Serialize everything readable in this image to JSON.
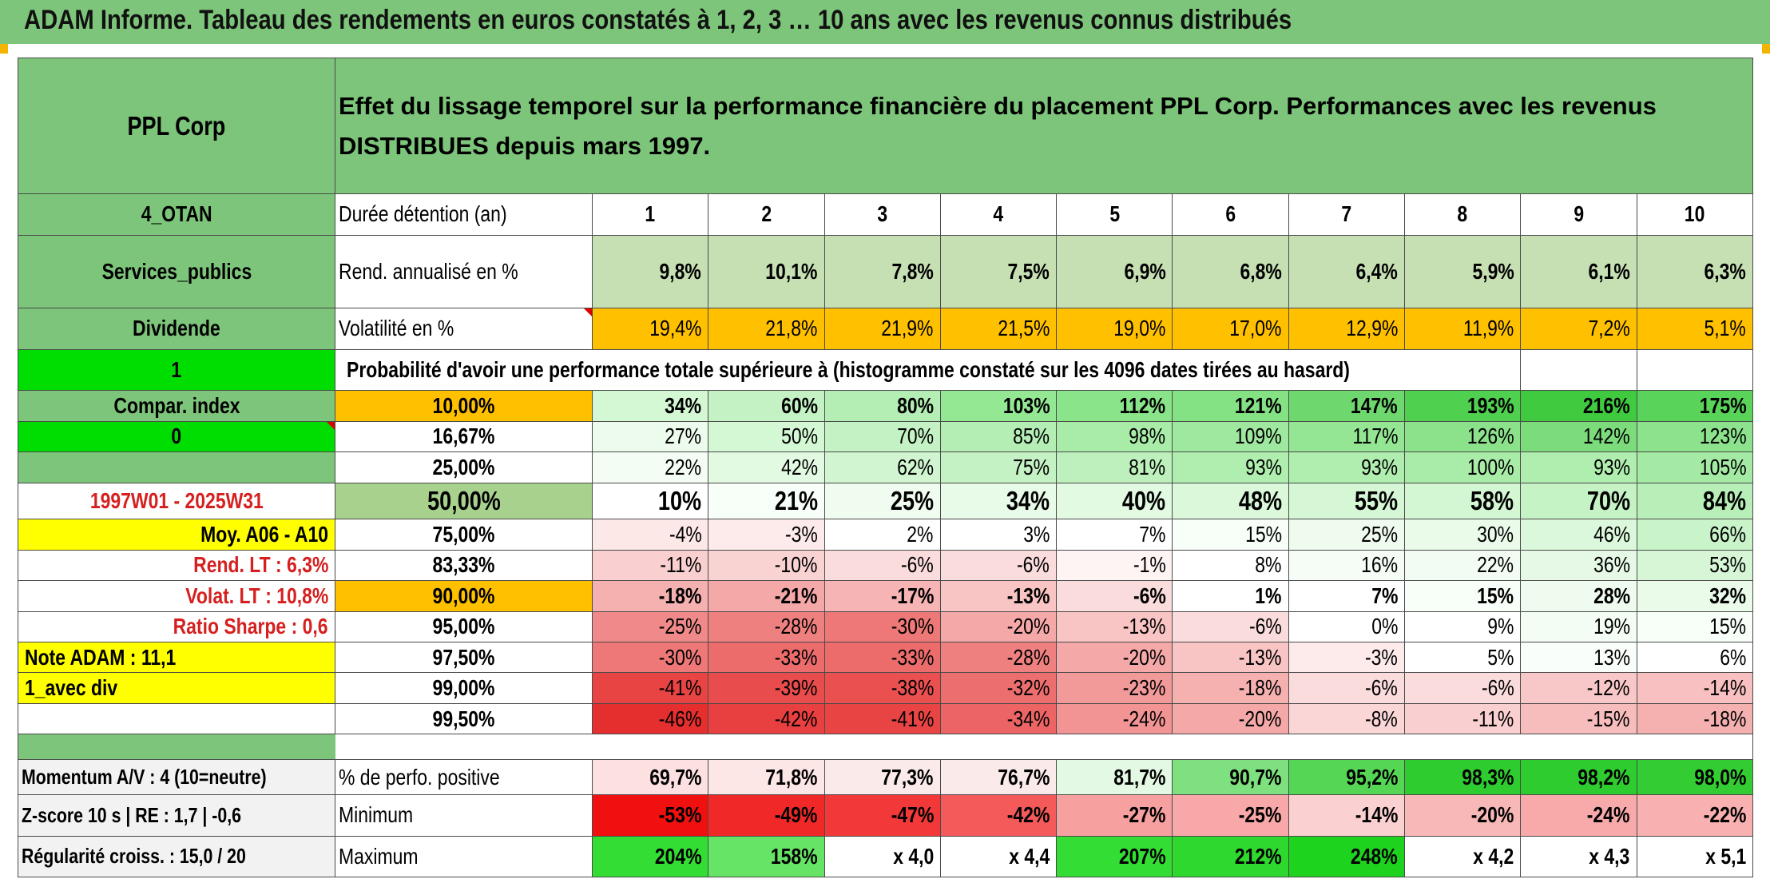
{
  "title": "ADAM Informe. Tableau des rendements en euros constatés à 1, 2, 3 … 10 ans avec les revenus connus distribués",
  "header": {
    "company": "PPL Corp",
    "description": "Effet du lissage temporel sur la performance financière du placement PPL Corp. Performances avec les revenus DISTRIBUES depuis mars 1997."
  },
  "side": {
    "otan": "4_OTAN",
    "sector": "Services_publics",
    "dividend": "Dividende",
    "one": "1",
    "compar": "Compar. index",
    "zero": "0",
    "period": "1997W01 - 2025W31",
    "moy": "Moy. A06 - A10",
    "rend_lt": "Rend. LT :   6,3%",
    "volat_lt": "Volat. LT :   10,8%",
    "sharpe": "Ratio Sharpe :    0,6",
    "note": "Note ADAM : 11,1",
    "avec_div": "1_avec div"
  },
  "rows": {
    "duree_label": "Durée détention (an)",
    "years": [
      "1",
      "2",
      "3",
      "4",
      "5",
      "6",
      "7",
      "8",
      "9",
      "10"
    ],
    "rend_label": "Rend. annualisé en %",
    "rend": [
      "9,8%",
      "10,1%",
      "7,8%",
      "7,5%",
      "6,9%",
      "6,8%",
      "6,4%",
      "5,9%",
      "6,1%",
      "6,3%"
    ],
    "vol_label": "Volatilité en %",
    "vol": [
      "19,4%",
      "21,8%",
      "21,9%",
      "21,5%",
      "19,0%",
      "17,0%",
      "12,9%",
      "11,9%",
      "7,2%",
      "5,1%"
    ],
    "proba_text": "Probabilité d'avoir une performance totale supérieure à (histogramme constaté sur les 4096 dates tirées au hasard)"
  },
  "percentiles": [
    {
      "p": "10,00%",
      "v": [
        "34%",
        "60%",
        "80%",
        "103%",
        "112%",
        "121%",
        "147%",
        "193%",
        "216%",
        "175%"
      ],
      "bg": [
        "#d4f7d4",
        "#c4f2c4",
        "#b4eeb4",
        "#94e894",
        "#8ae48a",
        "#84e284",
        "#6ed86e",
        "#4fd04f",
        "#3fca3f",
        "#5ad35a"
      ]
    },
    {
      "p": "16,67%",
      "v": [
        "27%",
        "50%",
        "70%",
        "85%",
        "98%",
        "109%",
        "117%",
        "126%",
        "142%",
        "123%"
      ],
      "bg": [
        "#ecfbec",
        "#d4f7d4",
        "#c4f2c4",
        "#b4eeb4",
        "#a8eca8",
        "#9fe89f",
        "#94e594",
        "#8be28b",
        "#7cdc7c",
        "#8de28d"
      ]
    },
    {
      "p": "25,00%",
      "v": [
        "22%",
        "42%",
        "62%",
        "75%",
        "81%",
        "93%",
        "93%",
        "100%",
        "93%",
        "105%"
      ],
      "bg": [
        "#f4fdf4",
        "#e2f9e2",
        "#d0f5d0",
        "#c4f2c4",
        "#bdf0bd",
        "#b0eeb0",
        "#b0eeb0",
        "#a8eca8",
        "#b0eeb0",
        "#a4eaa4"
      ]
    },
    {
      "p": "50,00%",
      "v": [
        "10%",
        "21%",
        "25%",
        "34%",
        "40%",
        "48%",
        "55%",
        "58%",
        "70%",
        "84%"
      ],
      "bg": [
        "#ffffff",
        "#f8fef8",
        "#f0fcf0",
        "#e8fae8",
        "#e2f9e2",
        "#dbf8db",
        "#d5f7d5",
        "#d3f6d3",
        "#c6f3c6",
        "#b8efb8"
      ]
    },
    {
      "p": "75,00%",
      "v": [
        "-4%",
        "-3%",
        "2%",
        "3%",
        "7%",
        "15%",
        "25%",
        "30%",
        "46%",
        "66%"
      ],
      "bg": [
        "#fde8e8",
        "#fdeaea",
        "#ffffff",
        "#ffffff",
        "#ffffff",
        "#f8fef8",
        "#eefbee",
        "#eafbea",
        "#dcf8dc",
        "#c9f3c9"
      ]
    },
    {
      "p": "83,33%",
      "v": [
        "-11%",
        "-10%",
        "-6%",
        "-6%",
        "-1%",
        "8%",
        "16%",
        "22%",
        "36%",
        "53%"
      ],
      "bg": [
        "#f9cfcf",
        "#f9d2d2",
        "#fbdcdc",
        "#fbdcdc",
        "#fef4f4",
        "#ffffff",
        "#f6fdf6",
        "#f2fcf2",
        "#e6f9e6",
        "#d6f6d6"
      ]
    },
    {
      "p": "90,00%",
      "v": [
        "-18%",
        "-21%",
        "-17%",
        "-13%",
        "-6%",
        "1%",
        "7%",
        "15%",
        "28%",
        "32%"
      ],
      "bg": [
        "#f5b0b0",
        "#f4a8a8",
        "#f6b4b4",
        "#f8c4c4",
        "#fbdcdc",
        "#ffffff",
        "#ffffff",
        "#f8fef8",
        "#eefbee",
        "#eafbea"
      ]
    },
    {
      "p": "95,00%",
      "v": [
        "-25%",
        "-28%",
        "-30%",
        "-20%",
        "-13%",
        "-6%",
        "0%",
        "9%",
        "19%",
        "15%"
      ],
      "bg": [
        "#f08a8a",
        "#ef8080",
        "#ee7878",
        "#f4a8a8",
        "#f8c4c4",
        "#fbdcdc",
        "#ffffff",
        "#ffffff",
        "#f4fdf4",
        "#f8fef8"
      ]
    },
    {
      "p": "97,50%",
      "v": [
        "-30%",
        "-33%",
        "-33%",
        "-28%",
        "-20%",
        "-13%",
        "-3%",
        "5%",
        "13%",
        "6%"
      ],
      "bg": [
        "#ee7878",
        "#ec6c6c",
        "#ec6c6c",
        "#ef8080",
        "#f4a8a8",
        "#f8c4c4",
        "#fdeaea",
        "#ffffff",
        "#fafefa",
        "#ffffff"
      ]
    },
    {
      "p": "99,00%",
      "v": [
        "-41%",
        "-39%",
        "-38%",
        "-32%",
        "-23%",
        "-18%",
        "-6%",
        "-6%",
        "-12%",
        "-14%"
      ],
      "bg": [
        "#e84444",
        "#e94c4c",
        "#ea5050",
        "#ed6e6e",
        "#f29a9a",
        "#f5b0b0",
        "#fbdcdc",
        "#fbdcdc",
        "#f8c8c8",
        "#f8c0c0"
      ]
    },
    {
      "p": "99,50%",
      "v": [
        "-46%",
        "-42%",
        "-41%",
        "-34%",
        "-24%",
        "-20%",
        "-8%",
        "-11%",
        "-15%",
        "-18%"
      ],
      "bg": [
        "#e52e2e",
        "#e84040",
        "#e84444",
        "#ec6464",
        "#f29494",
        "#f4a8a8",
        "#fad6d6",
        "#f9cfcf",
        "#f7bcbc",
        "#f5b0b0"
      ]
    }
  ],
  "bottom": {
    "momentum": "Momentum A/V : 4 (10=neutre)",
    "zscore": "Z-score 10 s | RE : 1,7 | -0,6",
    "regularite": "Régularité croiss. : 15,0 / 20",
    "pos_label": "% de perfo. positive",
    "pos": [
      "69,7%",
      "71,8%",
      "77,3%",
      "76,7%",
      "81,7%",
      "90,7%",
      "95,2%",
      "98,3%",
      "98,2%",
      "98,0%"
    ],
    "pos_bg": [
      "#fde0e0",
      "#fde6e6",
      "#fbeaea",
      "#fbeaea",
      "#e4f9e4",
      "#7ee07e",
      "#55d655",
      "#2ecc2e",
      "#2ecc2e",
      "#33cd33"
    ],
    "min_label": "Minimum",
    "min": [
      "-53%",
      "-49%",
      "-47%",
      "-42%",
      "-27%",
      "-25%",
      "-14%",
      "-20%",
      "-24%",
      "-22%"
    ],
    "min_bg": [
      "#f01010",
      "#f02828",
      "#f23838",
      "#f45a5a",
      "#f7a0a0",
      "#f8a8a8",
      "#fbd0d0",
      "#f9b8b8",
      "#f8aaaa",
      "#f8b0b0"
    ],
    "max_label": "Maximum",
    "max": [
      "204%",
      "158%",
      "x 4,0",
      "x 4,4",
      "207%",
      "212%",
      "248%",
      "x 4,2",
      "x 4,3",
      "x 5,1"
    ],
    "max_bg": [
      "#33dd33",
      "#66e466",
      "#ffffff",
      "#ffffff",
      "#33dd33",
      "#2ed82e",
      "#1ed31e",
      "#ffffff",
      "#ffffff",
      "#ffffff"
    ]
  },
  "colors": {
    "header_green": "#7dc57a",
    "light_green": "#c6e0b4",
    "bright_green": "#00dd00",
    "yellow": "#ffff00",
    "orange": "#ffc000",
    "red_text": "#d62020"
  }
}
